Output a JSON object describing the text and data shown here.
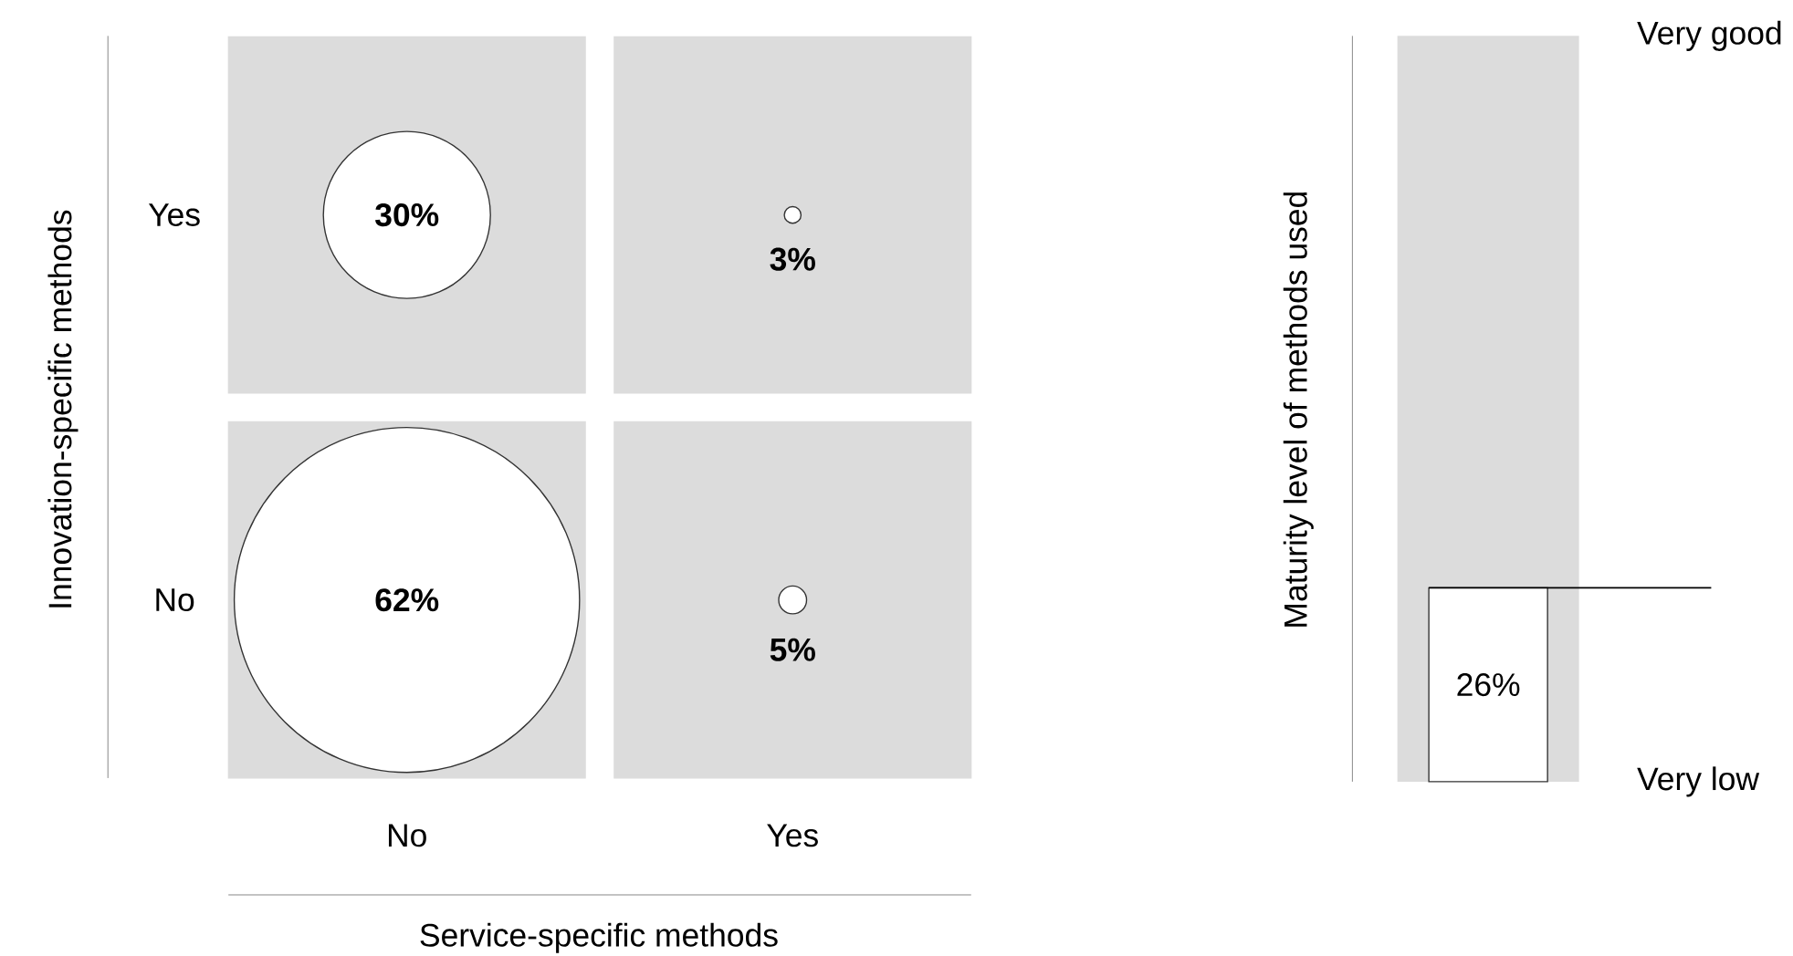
{
  "chart_data": [
    {
      "type": "heatmap",
      "xlabel": "Service-specific methods",
      "ylabel": "Innovation-specific methods",
      "categories": [
        "No",
        "Yes"
      ],
      "y_categories": [
        "Yes",
        "No"
      ],
      "cells": [
        [
          30,
          3
        ],
        [
          62,
          5
        ]
      ],
      "cell_labels": [
        [
          "30%",
          "3%"
        ],
        [
          "62%",
          "5%"
        ]
      ]
    },
    {
      "type": "bar",
      "ylabel": "Maturity level of methods used",
      "categories": [
        null
      ],
      "values": [
        26
      ],
      "value_labels": [
        "26%"
      ],
      "color": "#ffffff",
      "ylim": [
        0,
        100
      ],
      "annotations": [
        "Very low",
        "Very good"
      ],
      "bands": [
        {
          "axis": "y",
          "from": 0,
          "to": 100,
          "color": "#dcdcdc"
        }
      ],
      "ref_lines": [
        {
          "axis": "y",
          "value": 26,
          "color": "#000000"
        }
      ]
    }
  ]
}
